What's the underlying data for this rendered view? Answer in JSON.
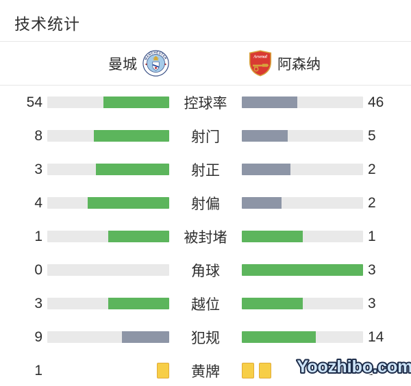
{
  "header": {
    "title": "技术统计"
  },
  "teams": {
    "home": {
      "name": "曼城",
      "badge_icon": "manchester-city-crest"
    },
    "away": {
      "name": "阿森纳",
      "badge_icon": "arsenal-crest"
    }
  },
  "stats": {
    "rows": [
      {
        "label": "控球率",
        "home": "54",
        "away": "46",
        "home_pct": 54,
        "away_pct": 46,
        "home_color": "green",
        "away_color": "gray"
      },
      {
        "label": "射门",
        "home": "8",
        "away": "5",
        "home_pct": 62,
        "away_pct": 38,
        "home_color": "green",
        "away_color": "gray"
      },
      {
        "label": "射正",
        "home": "3",
        "away": "2",
        "home_pct": 60,
        "away_pct": 40,
        "home_color": "green",
        "away_color": "gray"
      },
      {
        "label": "射偏",
        "home": "4",
        "away": "2",
        "home_pct": 67,
        "away_pct": 33,
        "home_color": "green",
        "away_color": "gray"
      },
      {
        "label": "被封堵",
        "home": "1",
        "away": "1",
        "home_pct": 50,
        "away_pct": 50,
        "home_color": "green",
        "away_color": "green"
      },
      {
        "label": "角球",
        "home": "0",
        "away": "3",
        "home_pct": 0,
        "away_pct": 100,
        "home_color": "green",
        "away_color": "green"
      },
      {
        "label": "越位",
        "home": "3",
        "away": "3",
        "home_pct": 50,
        "away_pct": 50,
        "home_color": "green",
        "away_color": "green"
      },
      {
        "label": "犯规",
        "home": "9",
        "away": "14",
        "home_pct": 39,
        "away_pct": 61,
        "home_color": "gray",
        "away_color": "green"
      },
      {
        "label": "黄牌",
        "home": "1",
        "away": "2",
        "type": "cards",
        "home_cards": 1,
        "away_cards": 2
      }
    ]
  },
  "colors": {
    "green": "#5cb55c",
    "gray": "#8d95a6",
    "track": "#e9e9e9",
    "card_fill": "#f7ce47",
    "card_border": "#e0ab38"
  },
  "watermark": {
    "text": "Yoozhibo.com"
  },
  "chart_data": {
    "type": "bar",
    "title": "技术统计",
    "series": [
      {
        "name": "曼城",
        "values": [
          54,
          8,
          3,
          4,
          1,
          0,
          3,
          9,
          1
        ]
      },
      {
        "name": "阿森纳",
        "values": [
          46,
          5,
          2,
          2,
          1,
          3,
          3,
          14,
          2
        ]
      }
    ],
    "categories": [
      "控球率",
      "射门",
      "射正",
      "射偏",
      "被封堵",
      "角球",
      "越位",
      "犯规",
      "黄牌"
    ],
    "legend_position": "top",
    "grid": false
  }
}
